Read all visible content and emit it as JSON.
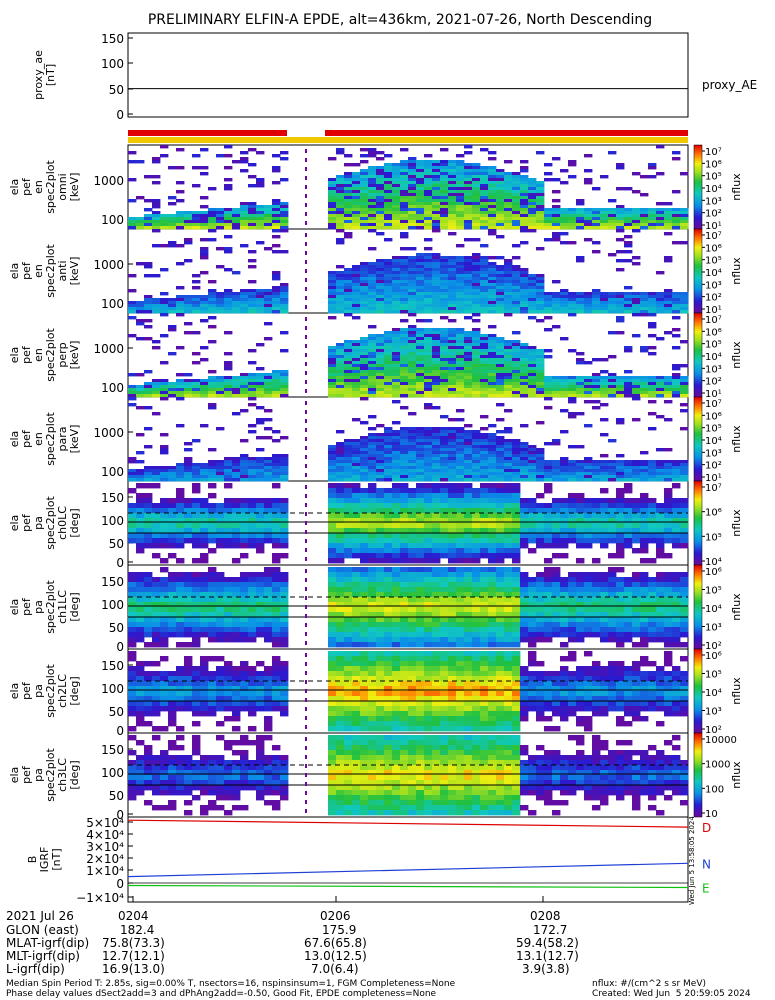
{
  "title": "PRELIMINARY ELFIN-A EPDE, alt=436km, 2021-07-26, North Descending",
  "panels": [
    {
      "ylabel": [
        "proxy_ae",
        "[nT]"
      ],
      "ticks": [
        "150",
        "100",
        "50",
        "0"
      ],
      "right_label": "proxy_AE"
    },
    {
      "ylabel": [
        "ela",
        "pef",
        "en",
        "spec2plot",
        "omni",
        "[keV]"
      ],
      "ticks": [
        "1000",
        "100"
      ]
    },
    {
      "ylabel": [
        "ela",
        "pef",
        "en",
        "spec2plot",
        "anti",
        "[keV]"
      ],
      "ticks": [
        "1000",
        "100"
      ]
    },
    {
      "ylabel": [
        "ela",
        "pef",
        "en",
        "spec2plot",
        "perp",
        "[keV]"
      ],
      "ticks": [
        "1000",
        "100"
      ]
    },
    {
      "ylabel": [
        "ela",
        "pef",
        "en",
        "spec2plot",
        "para",
        "[keV]"
      ],
      "ticks": [
        "1000",
        "100"
      ]
    },
    {
      "ylabel": [
        "ela",
        "pef",
        "pa",
        "spec2plot",
        "ch0LC",
        "[deg]"
      ],
      "ticks": [
        "150",
        "100",
        "50",
        "0"
      ]
    },
    {
      "ylabel": [
        "ela",
        "pef",
        "pa",
        "spec2plot",
        "ch1LC",
        "[deg]"
      ],
      "ticks": [
        "150",
        "100",
        "50",
        "0"
      ]
    },
    {
      "ylabel": [
        "ela",
        "pef",
        "pa",
        "spec2plot",
        "ch2LC",
        "[deg]"
      ],
      "ticks": [
        "150",
        "100",
        "50",
        "0"
      ]
    },
    {
      "ylabel": [
        "ela",
        "pef",
        "pa",
        "spec2plot",
        "ch3LC",
        "[deg]"
      ],
      "ticks": [
        "150",
        "100",
        "50",
        "0"
      ]
    },
    {
      "ylabel": [
        "B",
        "IGRF",
        "[nT]"
      ],
      "ticks": [
        "5×10⁴",
        "4×10⁴",
        "3×10⁴",
        "2×10⁴",
        "1×10⁴",
        "0",
        "−1×10⁴"
      ],
      "legend": [
        {
          "label": "D",
          "color": "#dd0000"
        },
        {
          "label": "N",
          "color": "#1f3fd6"
        },
        {
          "label": "E",
          "color": "#10c010"
        }
      ]
    }
  ],
  "colorbars": [
    {
      "label": "nflux",
      "ticks": [
        "10⁷",
        "10⁶",
        "10⁵",
        "10⁴",
        "10³",
        "10²",
        "10¹"
      ]
    },
    {
      "label": "nflux",
      "ticks": [
        "10⁷",
        "10⁶",
        "10⁵",
        "10⁴",
        "10³",
        "10²",
        "10¹"
      ]
    },
    {
      "label": "nflux",
      "ticks": [
        "10⁷",
        "10⁶",
        "10⁵",
        "10⁴",
        "10³",
        "10²",
        "10¹"
      ]
    },
    {
      "label": "nflux",
      "ticks": [
        "10⁷",
        "10⁶",
        "10⁵",
        "10⁴",
        "10³",
        "10²",
        "10¹"
      ]
    },
    {
      "label": "nflux",
      "ticks": [
        "10⁷",
        "10⁶",
        "10⁵",
        "10⁴"
      ]
    },
    {
      "label": "nflux",
      "ticks": [
        "10⁶",
        "10⁵",
        "10⁴",
        "10³",
        "10²"
      ]
    },
    {
      "label": "nflux",
      "ticks": [
        "10⁶",
        "10⁵",
        "10⁴",
        "10³",
        "10²"
      ]
    },
    {
      "label": "nflux",
      "ticks": [
        "10000",
        "1000",
        "100",
        "10"
      ]
    }
  ],
  "created_stamp": "Wed Jun  5 13:58:05 2024",
  "footer": {
    "rows": [
      [
        "2021 Jul 26",
        "0204",
        "0206",
        "0208"
      ],
      [
        "GLON (east)",
        "182.4",
        "175.9",
        "172.7"
      ],
      [
        "MLAT-igrf(dip)",
        "75.8(73.3)",
        "67.6(65.8)",
        "59.4(58.2)"
      ],
      [
        "MLT-igrf(dip)",
        "12.7(12.1)",
        "13.0(12.5)",
        "13.1(12.7)"
      ],
      [
        "L-igrf(dip)",
        "16.9(13.0)",
        "7.0(6.4)",
        "3.9(3.8)"
      ]
    ],
    "note1": "Median Spin Period T: 2.85s, sig=0.00% T, nsectors=16, nspinsinsum=1, FGM Completeness=None",
    "note2": "Phase delay values dSect2add=3 and dPhAng2add=-0.50, Good Fit, EPDE completeness=None",
    "units": "nflux: #/(cm^2 s sr MeV)",
    "created": "Created: Wed Jun  5 20:59:05 2024"
  },
  "chart_data": {
    "type": "heatmap",
    "title": "PRELIMINARY ELFIN-A EPDE, alt=436km, 2021-07-26, North Descending",
    "x_ticks": [
      "0204",
      "0206",
      "0208"
    ],
    "proxy_ae": {
      "ylim": [
        0,
        150
      ],
      "value": 50
    },
    "energy_ylim": [
      70,
      5000
    ],
    "pitch_angle_ylim": [
      0,
      180
    ],
    "igrf": {
      "ylim": [
        -15000,
        52000
      ],
      "series": [
        {
          "name": "D",
          "color": "#dd0000",
          "start": 49500,
          "end": 44000
        },
        {
          "name": "N",
          "color": "#1f3fd6",
          "start": 5000,
          "end": 15500
        },
        {
          "name": "E",
          "color": "#10c010",
          "start": -2000,
          "end": -3600
        }
      ]
    }
  }
}
